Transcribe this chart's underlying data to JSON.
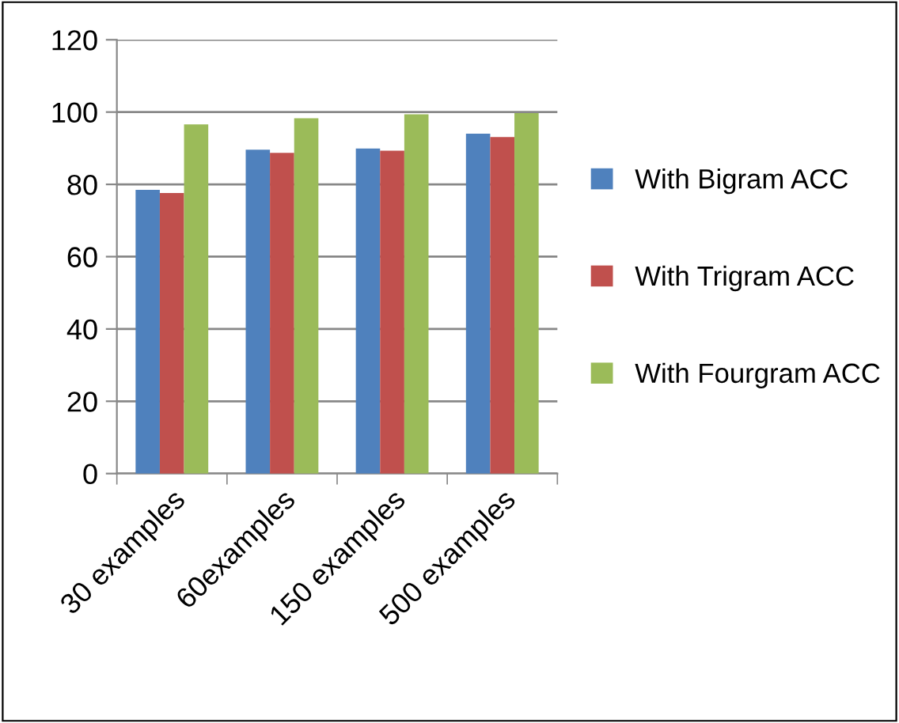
{
  "chart_data": {
    "type": "bar",
    "categories": [
      "30 examples",
      "60examples",
      "150 examples",
      "500 examples"
    ],
    "series": [
      {
        "name": "With Bigram ACC",
        "color": "#4f81bd",
        "values": [
          78.5,
          89.6,
          89.9,
          94.0
        ]
      },
      {
        "name": "With Trigram ACC",
        "color": "#c0504d",
        "values": [
          77.6,
          88.7,
          89.3,
          93.1
        ]
      },
      {
        "name": "With Fourgram ACC",
        "color": "#9bbb59",
        "values": [
          96.6,
          98.3,
          99.4,
          99.7
        ]
      }
    ],
    "ylim": [
      0,
      120
    ],
    "yticks": [
      0,
      20,
      40,
      60,
      80,
      100,
      120
    ],
    "grid": "y",
    "legend": "right"
  }
}
